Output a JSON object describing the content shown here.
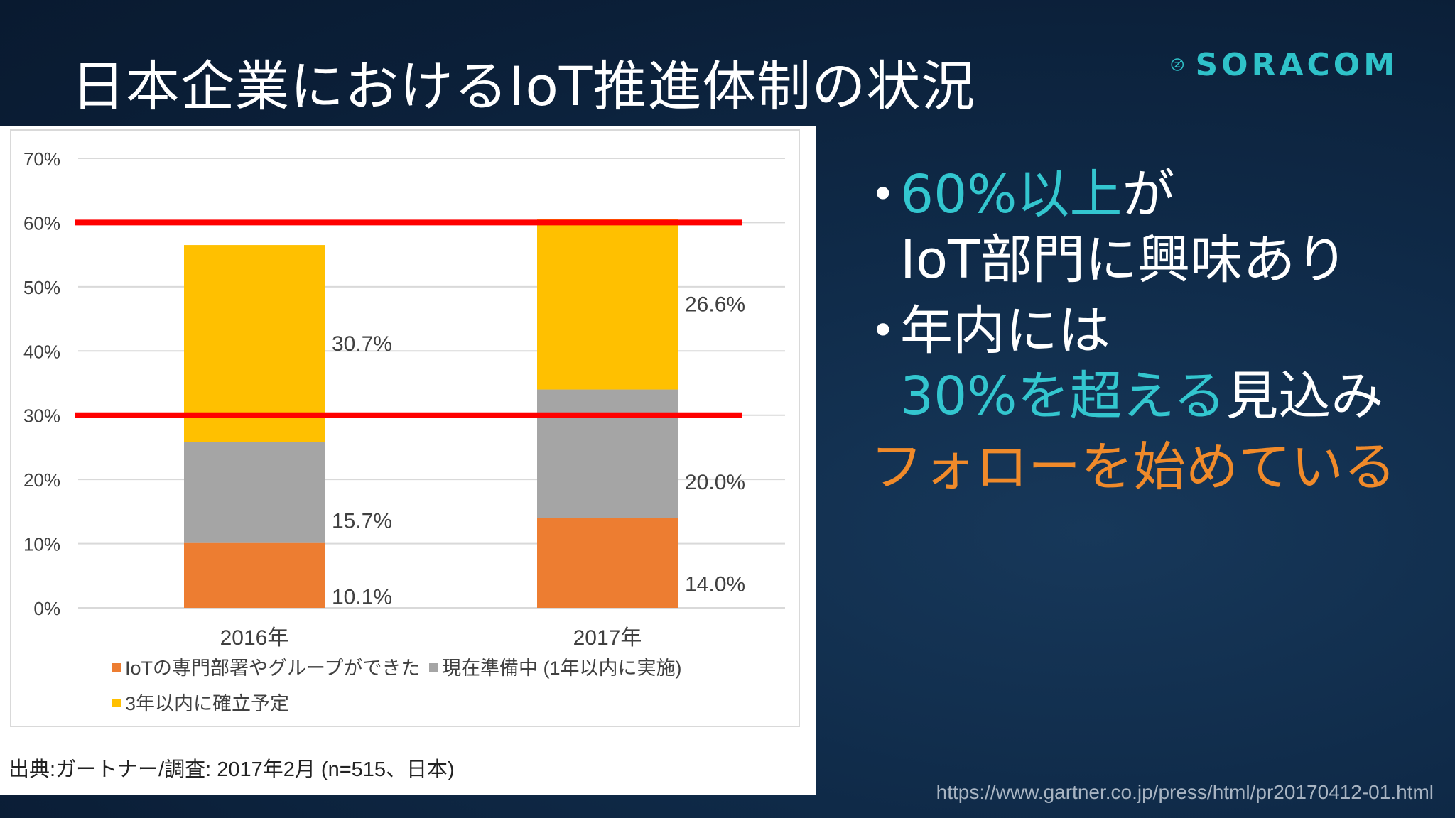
{
  "slide": {
    "title": "日本企業におけるIoT推進体制の状況",
    "logo_text": "SORACOM",
    "logo_icon": "soracom-logo-icon",
    "source": "出典:ガートナー/調査: 2017年2月 (n=515、日本)",
    "url": "https://www.gartner.co.jp/press/html/pr20170412-01.html"
  },
  "bullets": {
    "b1_highlight": "60%以上",
    "b1_rest": "が",
    "b1_line2": "IoT部門に興味あり",
    "b2_line1": "年内には",
    "b2_highlight": "30%を超える",
    "b2_rest": "見込み",
    "follow": "フォローを始めている"
  },
  "colors": {
    "cyan": "#33c6cf",
    "orange_text": "#f08a2a",
    "bar_orange": "#ed7d31",
    "bar_gray": "#a5a5a5",
    "bar_yellow": "#ffc000",
    "ref_line": "#ff0000"
  },
  "chart_data": {
    "type": "bar",
    "stacked": true,
    "categories": [
      "2016年",
      "2017年"
    ],
    "series": [
      {
        "name": "IoTの専門部署やグループができた",
        "values": [
          10.1,
          14.0
        ],
        "labels": [
          "10.1%",
          "14.0%"
        ],
        "color": "#ed7d31"
      },
      {
        "name": "現在準備中 (1年以内に実施)",
        "values": [
          15.7,
          20.0
        ],
        "labels": [
          "15.7%",
          "20.0%"
        ],
        "color": "#a5a5a5"
      },
      {
        "name": "3年以内に確立予定",
        "values": [
          30.7,
          26.6
        ],
        "labels": [
          "30.7%",
          "26.6%"
        ],
        "color": "#ffc000"
      }
    ],
    "ylim": [
      0,
      70
    ],
    "yticks": [
      "0%",
      "10%",
      "20%",
      "30%",
      "40%",
      "50%",
      "60%",
      "70%"
    ],
    "grid": true,
    "legend_position": "bottom",
    "reference_lines": [
      60,
      30
    ]
  }
}
